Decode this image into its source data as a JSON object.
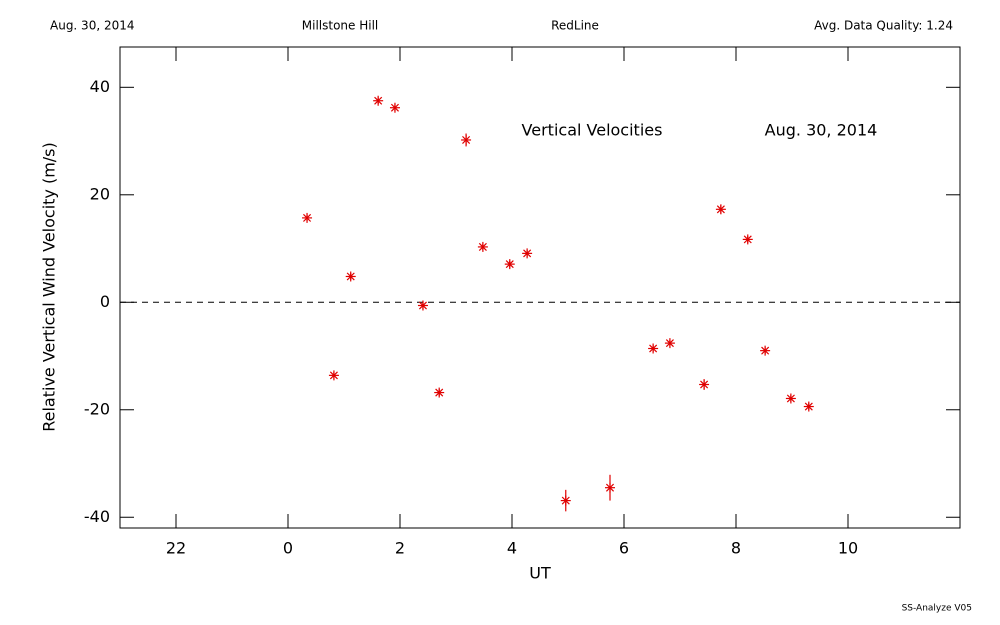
{
  "header": {
    "date": "Aug. 30, 2014",
    "site": "Millstone Hill",
    "line": "RedLine",
    "quality": "Avg. Data Quality: 1.24"
  },
  "footer": "SS-Analyze V05",
  "chart_data": {
    "type": "scatter",
    "title": "Vertical Velocities",
    "annotation": "Aug. 30, 2014",
    "x_label": "UT",
    "y_label": "Relative Vertical Wind Velocity (m/s)",
    "xlim": [
      -3,
      12
    ],
    "ylim": [
      -42,
      47.5
    ],
    "xticks": [
      {
        "value": -2,
        "label": "22"
      },
      0,
      2,
      4,
      6,
      8,
      10
    ],
    "yticks": [
      -40,
      -20,
      0,
      20,
      40
    ],
    "reference_line": 0,
    "color": "#e00000",
    "x": [
      0.34,
      0.82,
      1.12,
      1.61,
      1.91,
      2.41,
      2.7,
      3.18,
      3.48,
      3.96,
      4.27,
      4.96,
      5.75,
      6.52,
      6.82,
      7.43,
      7.73,
      8.21,
      8.52,
      8.98,
      9.3
    ],
    "values": [
      15.7,
      -13.6,
      4.8,
      37.5,
      36.2,
      -0.6,
      -16.8,
      30.2,
      10.3,
      7.1,
      9.1,
      -36.9,
      -34.5,
      -8.6,
      -7.6,
      -15.3,
      17.3,
      11.7,
      -9.0,
      -17.9,
      -19.4
    ],
    "errors": [
      0.6,
      0.6,
      0.6,
      0.6,
      0.6,
      0.6,
      0.6,
      1.2,
      0.6,
      0.6,
      0.6,
      2.0,
      2.4,
      0.6,
      0.6,
      1.0,
      0.8,
      0.6,
      0.6,
      0.6,
      0.6
    ]
  }
}
